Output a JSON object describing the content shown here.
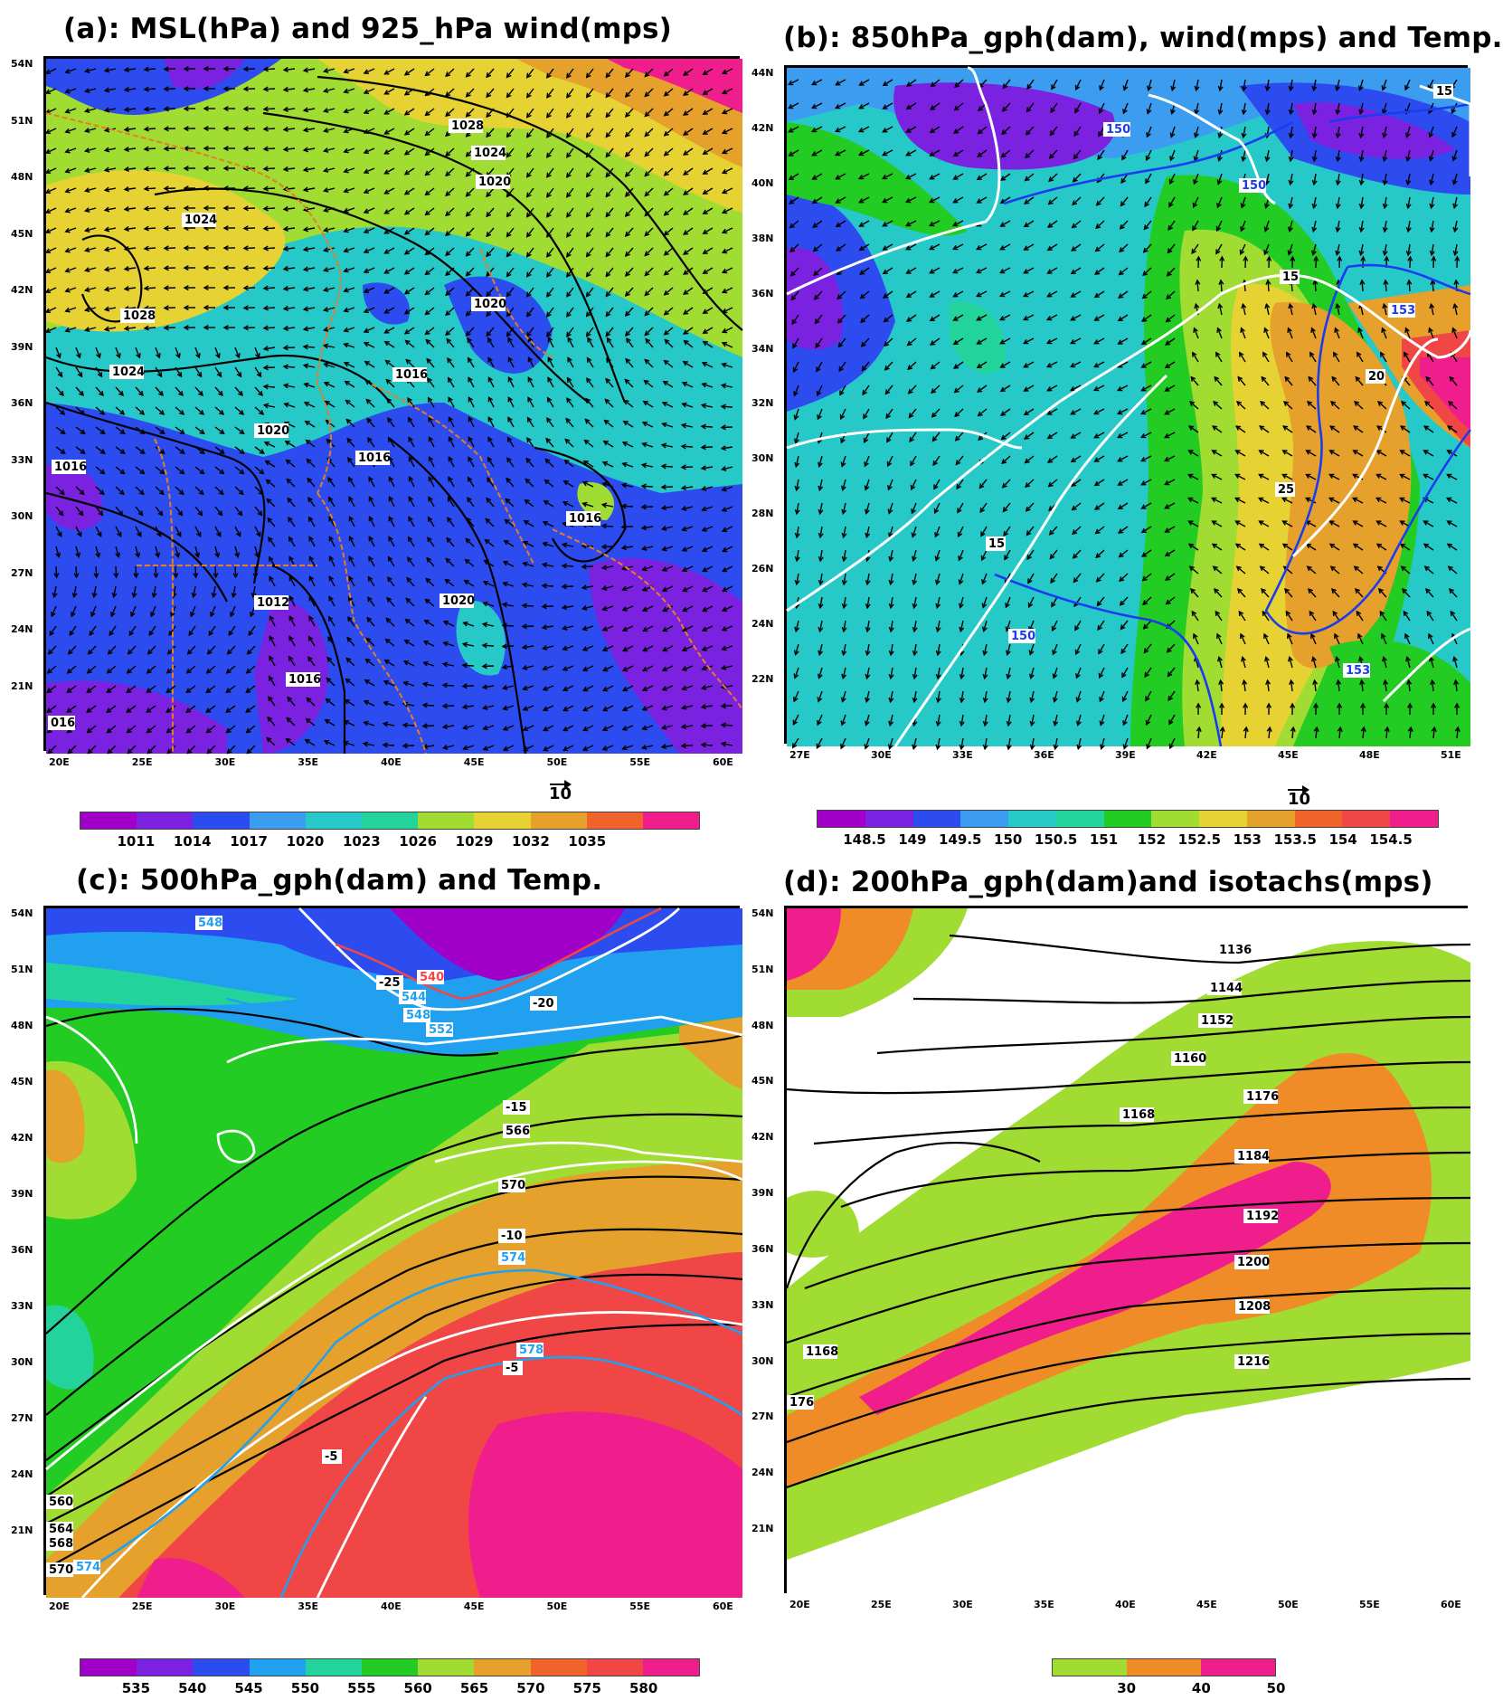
{
  "panels": {
    "a": {
      "title": "(a): MSL(hPa) and 925_hPa wind(mps)",
      "lat_ticks": [
        "54N",
        "51N",
        "48N",
        "45N",
        "42N",
        "39N",
        "36N",
        "33N",
        "30N",
        "27N",
        "24N",
        "21N"
      ],
      "lon_ticks": [
        "20E",
        "25E",
        "30E",
        "35E",
        "40E",
        "45E",
        "50E",
        "55E",
        "60E"
      ],
      "contour_labels": [
        "1028",
        "1024",
        "1020",
        "1024",
        "1028",
        "1024",
        "1020",
        "1016",
        "1016",
        "1020",
        "1016",
        "1016",
        "1012",
        "1016",
        "1020",
        "016"
      ],
      "colorbar": [
        "1011",
        "1014",
        "1017",
        "1020",
        "1023",
        "1026",
        "1029",
        "1032",
        "1035"
      ],
      "colors": [
        "#a000c8",
        "#7a22e0",
        "#2c4cf0",
        "#3c9cf0",
        "#26c8c8",
        "#22d49c",
        "#a0dc32",
        "#e6d232",
        "#e6a02c",
        "#f0642c",
        "#f01e8c"
      ],
      "reference_vector": "10"
    },
    "b": {
      "title": "(b): 850hPa_gph(dam), wind(mps) and Temp.",
      "lat_ticks": [
        "44N",
        "42N",
        "40N",
        "38N",
        "36N",
        "34N",
        "32N",
        "30N",
        "28N",
        "26N",
        "24N",
        "22N"
      ],
      "lon_ticks": [
        "27E",
        "30E",
        "33E",
        "36E",
        "39E",
        "42E",
        "45E",
        "48E",
        "51E"
      ],
      "contour_labels": [
        "150",
        "15",
        "150",
        "15",
        "153",
        "20",
        "25",
        "15",
        "150",
        "153"
      ],
      "colorbar": [
        "148.5",
        "149",
        "149.5",
        "150",
        "150.5",
        "151",
        "152",
        "152.5",
        "153",
        "153.5",
        "154",
        "154.5"
      ],
      "colors": [
        "#a000c8",
        "#7a22e0",
        "#2c4cf0",
        "#3c9cf0",
        "#26c8c8",
        "#22d49c",
        "#22cc22",
        "#a0dc32",
        "#e6d232",
        "#e6a02c",
        "#f0642c",
        "#f04646",
        "#f01e8c"
      ],
      "reference_vector": "10"
    },
    "c": {
      "title": "(c): 500hPa_gph(dam) and Temp.",
      "lat_ticks": [
        "54N",
        "51N",
        "48N",
        "45N",
        "42N",
        "39N",
        "36N",
        "33N",
        "30N",
        "27N",
        "24N",
        "21N"
      ],
      "lon_ticks": [
        "20E",
        "25E",
        "30E",
        "35E",
        "40E",
        "45E",
        "50E",
        "55E",
        "60E"
      ],
      "contour_labels": [
        "548",
        "-25",
        "540",
        "544",
        "548",
        "552",
        "-20",
        "-15",
        "566",
        "570",
        "-10",
        "574",
        "578",
        "-5",
        "-5",
        "560",
        "564",
        "568",
        "570",
        "574"
      ],
      "colorbar": [
        "535",
        "540",
        "545",
        "550",
        "555",
        "560",
        "565",
        "570",
        "575",
        "580"
      ],
      "colors": [
        "#a000c8",
        "#7a22e0",
        "#2c4cf0",
        "#22a0f0",
        "#22d49c",
        "#22cc22",
        "#a0dc32",
        "#e6a02c",
        "#f0642c",
        "#f04646",
        "#f01e8c"
      ]
    },
    "d": {
      "title": "(d): 200hPa_gph(dam)and isotachs(mps)",
      "lat_ticks": [
        "54N",
        "51N",
        "48N",
        "45N",
        "42N",
        "39N",
        "36N",
        "33N",
        "30N",
        "27N",
        "24N",
        "21N"
      ],
      "lon_ticks": [
        "20E",
        "25E",
        "30E",
        "35E",
        "40E",
        "45E",
        "50E",
        "55E",
        "60E"
      ],
      "contour_labels": [
        "1136",
        "1144",
        "1152",
        "1160",
        "1168",
        "1176",
        "1184",
        "1192",
        "1200",
        "1208",
        "1216",
        "1168",
        "176"
      ],
      "colorbar": [
        "30",
        "40",
        "50"
      ],
      "colors": [
        "#a0dc32",
        "#f08c28",
        "#f01e8c"
      ]
    }
  }
}
